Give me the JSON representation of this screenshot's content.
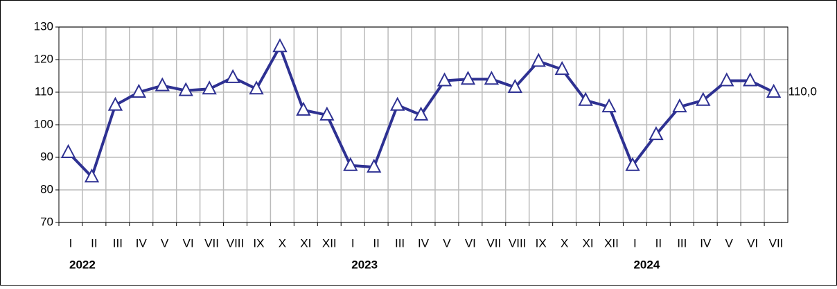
{
  "chart_data": {
    "type": "line",
    "categories": [
      "I",
      "II",
      "III",
      "IV",
      "V",
      "VI",
      "VII",
      "VIII",
      "IX",
      "X",
      "XI",
      "XII",
      "I",
      "II",
      "III",
      "IV",
      "V",
      "VI",
      "VII",
      "VIII",
      "IX",
      "X",
      "XI",
      "XII",
      "I",
      "II",
      "III",
      "IV",
      "V",
      "VI",
      "VII"
    ],
    "groups": [
      "2022",
      "2023",
      "2024"
    ],
    "series": [
      {
        "color": "#2e3192",
        "values": [
          91.5,
          84,
          106,
          110,
          112,
          110.5,
          111,
          114.5,
          111,
          124,
          104.5,
          103,
          87.5,
          87,
          106,
          103,
          113.5,
          114,
          114,
          111.5,
          119.5,
          117,
          107.5,
          105.5,
          87.5,
          97,
          105.5,
          107.5,
          113.5,
          113.5,
          110
        ],
        "value_labels": [
          null,
          null,
          null,
          null,
          null,
          null,
          null,
          null,
          null,
          null,
          null,
          null,
          null,
          null,
          null,
          null,
          null,
          null,
          null,
          null,
          null,
          null,
          null,
          null,
          null,
          null,
          null,
          null,
          null,
          null,
          "110,0"
        ]
      }
    ],
    "ylim": [
      70,
      130
    ],
    "yticks": [
      70,
      80,
      90,
      100,
      110,
      120,
      130
    ],
    "grid": true
  }
}
